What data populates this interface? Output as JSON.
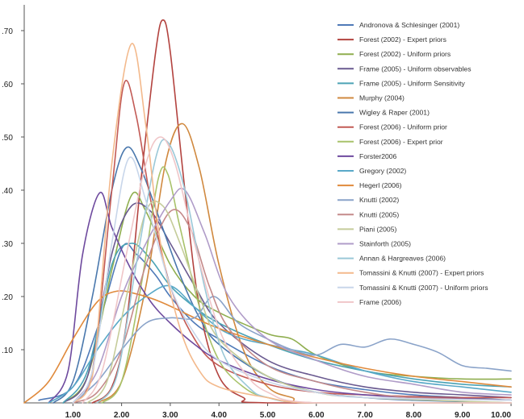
{
  "chart_data": {
    "type": "line",
    "title": "",
    "xlabel": "",
    "ylabel": "",
    "xlim": [
      0,
      10
    ],
    "ylim": [
      0,
      0.7
    ],
    "x_ticks": [
      "1.00",
      "2.00",
      "3.00",
      "4.00",
      "5.00",
      "6.00",
      "7.00",
      "8.00",
      "9.00",
      "10.00"
    ],
    "y_ticks": [
      ".10",
      ".20",
      ".30",
      ".40",
      ".50",
      ".60",
      ".70"
    ],
    "grid": false,
    "legend_position": "top-right",
    "series": [
      {
        "name": "Andronova & Schlesinger (2001)",
        "color": "#4f7ab8",
        "points": [
          [
            0.3,
            0.005
          ],
          [
            1.0,
            0.03
          ],
          [
            1.5,
            0.14
          ],
          [
            2.0,
            0.29
          ],
          [
            2.3,
            0.28
          ],
          [
            2.7,
            0.24
          ],
          [
            3.0,
            0.2
          ],
          [
            3.5,
            0.15
          ],
          [
            4.0,
            0.12
          ],
          [
            5.0,
            0.07
          ],
          [
            6.0,
            0.04
          ],
          [
            7.0,
            0.025
          ],
          [
            8.0,
            0.015
          ],
          [
            9.0,
            0.01
          ],
          [
            10.0,
            0.005
          ]
        ]
      },
      {
        "name": "Forest (2002) - Expert priors",
        "color": "#b3433f",
        "points": [
          [
            1.4,
            0.0
          ],
          [
            1.8,
            0.03
          ],
          [
            2.1,
            0.15
          ],
          [
            2.4,
            0.42
          ],
          [
            2.7,
            0.66
          ],
          [
            2.85,
            0.72
          ],
          [
            3.0,
            0.66
          ],
          [
            3.3,
            0.4
          ],
          [
            3.6,
            0.18
          ],
          [
            4.0,
            0.05
          ],
          [
            4.5,
            0.01
          ],
          [
            5.0,
            0.0
          ],
          [
            10.0,
            0.0
          ]
        ]
      },
      {
        "name": "Forest (2002) - Uniform priors",
        "color": "#8fae4f",
        "points": [
          [
            0.8,
            0.0
          ],
          [
            1.3,
            0.05
          ],
          [
            1.8,
            0.25
          ],
          [
            2.2,
            0.39
          ],
          [
            2.5,
            0.36
          ],
          [
            3.0,
            0.26
          ],
          [
            3.5,
            0.2
          ],
          [
            4.0,
            0.17
          ],
          [
            5.0,
            0.13
          ],
          [
            5.5,
            0.12
          ],
          [
            6.0,
            0.09
          ],
          [
            7.0,
            0.06
          ],
          [
            8.0,
            0.05
          ],
          [
            9.0,
            0.045
          ],
          [
            10.0,
            0.045
          ]
        ]
      },
      {
        "name": "Frame (2005) - Uniform observables",
        "color": "#6a5a90",
        "points": [
          [
            0.8,
            0.0
          ],
          [
            1.3,
            0.05
          ],
          [
            1.8,
            0.28
          ],
          [
            2.2,
            0.37
          ],
          [
            2.6,
            0.36
          ],
          [
            3.0,
            0.3
          ],
          [
            3.5,
            0.22
          ],
          [
            4.0,
            0.15
          ],
          [
            5.0,
            0.08
          ],
          [
            6.0,
            0.05
          ],
          [
            7.0,
            0.03
          ],
          [
            8.0,
            0.02
          ],
          [
            9.0,
            0.015
          ],
          [
            10.0,
            0.01
          ]
        ]
      },
      {
        "name": "Frame (2005) - Uniform Sensitivity",
        "color": "#4ca3b5",
        "points": [
          [
            0.8,
            0.0
          ],
          [
            1.3,
            0.06
          ],
          [
            1.8,
            0.26
          ],
          [
            2.2,
            0.3
          ],
          [
            2.6,
            0.27
          ],
          [
            3.0,
            0.22
          ],
          [
            3.5,
            0.18
          ],
          [
            4.0,
            0.15
          ],
          [
            5.0,
            0.11
          ],
          [
            6.0,
            0.08
          ],
          [
            7.0,
            0.06
          ],
          [
            8.0,
            0.045
          ],
          [
            9.0,
            0.035
          ],
          [
            10.0,
            0.03
          ]
        ]
      },
      {
        "name": "Murphy (2004)",
        "color": "#d0893f",
        "points": [
          [
            1.5,
            0.0
          ],
          [
            2.0,
            0.04
          ],
          [
            2.5,
            0.22
          ],
          [
            2.9,
            0.45
          ],
          [
            3.25,
            0.525
          ],
          [
            3.6,
            0.44
          ],
          [
            4.0,
            0.26
          ],
          [
            4.5,
            0.1
          ],
          [
            5.0,
            0.03
          ],
          [
            5.5,
            0.01
          ],
          [
            6.0,
            0.0
          ],
          [
            10.0,
            0.0
          ]
        ]
      },
      {
        "name": "Wigley & Raper (2001)",
        "color": "#4a78ad",
        "points": [
          [
            0.6,
            0.0
          ],
          [
            1.0,
            0.04
          ],
          [
            1.4,
            0.2
          ],
          [
            1.8,
            0.4
          ],
          [
            2.1,
            0.48
          ],
          [
            2.4,
            0.44
          ],
          [
            2.8,
            0.34
          ],
          [
            3.2,
            0.24
          ],
          [
            3.6,
            0.16
          ],
          [
            4.0,
            0.11
          ],
          [
            5.0,
            0.05
          ],
          [
            6.0,
            0.02
          ],
          [
            7.0,
            0.01
          ],
          [
            8.0,
            0.005
          ],
          [
            10.0,
            0.0
          ]
        ]
      },
      {
        "name": "Forest (2006) - Uniform prior",
        "color": "#c25a55",
        "points": [
          [
            1.0,
            0.0
          ],
          [
            1.4,
            0.06
          ],
          [
            1.8,
            0.4
          ],
          [
            2.05,
            0.6
          ],
          [
            2.3,
            0.54
          ],
          [
            2.6,
            0.38
          ],
          [
            3.0,
            0.22
          ],
          [
            3.5,
            0.12
          ],
          [
            4.0,
            0.07
          ],
          [
            5.0,
            0.035
          ],
          [
            6.0,
            0.02
          ],
          [
            7.0,
            0.015
          ],
          [
            8.0,
            0.012
          ],
          [
            9.0,
            0.01
          ],
          [
            10.0,
            0.01
          ]
        ]
      },
      {
        "name": "Forest (2006) - Expert prior",
        "color": "#a8c26a",
        "points": [
          [
            1.6,
            0.0
          ],
          [
            2.0,
            0.04
          ],
          [
            2.4,
            0.22
          ],
          [
            2.75,
            0.42
          ],
          [
            2.95,
            0.43
          ],
          [
            3.2,
            0.33
          ],
          [
            3.6,
            0.18
          ],
          [
            4.0,
            0.08
          ],
          [
            4.5,
            0.03
          ],
          [
            5.0,
            0.01
          ],
          [
            6.0,
            0.0
          ],
          [
            10.0,
            0.0
          ]
        ]
      },
      {
        "name": "Forster2006",
        "color": "#6e4a9e",
        "points": [
          [
            0.5,
            0.0
          ],
          [
            0.9,
            0.06
          ],
          [
            1.2,
            0.28
          ],
          [
            1.55,
            0.395
          ],
          [
            1.8,
            0.33
          ],
          [
            2.2,
            0.25
          ],
          [
            2.6,
            0.19
          ],
          [
            3.0,
            0.15
          ],
          [
            3.5,
            0.11
          ],
          [
            4.0,
            0.08
          ],
          [
            5.0,
            0.045
          ],
          [
            6.0,
            0.025
          ],
          [
            7.0,
            0.015
          ],
          [
            8.0,
            0.01
          ],
          [
            9.0,
            0.008
          ],
          [
            10.0,
            0.005
          ]
        ]
      },
      {
        "name": "Gregory (2002)",
        "color": "#59a9c8",
        "points": [
          [
            0.5,
            0.0
          ],
          [
            1.0,
            0.03
          ],
          [
            1.5,
            0.1
          ],
          [
            2.0,
            0.16
          ],
          [
            2.5,
            0.2
          ],
          [
            3.0,
            0.22
          ],
          [
            3.5,
            0.18
          ],
          [
            4.0,
            0.14
          ],
          [
            4.5,
            0.12
          ],
          [
            5.0,
            0.11
          ],
          [
            5.5,
            0.1
          ],
          [
            6.0,
            0.09
          ],
          [
            7.0,
            0.06
          ],
          [
            8.0,
            0.04
          ],
          [
            9.0,
            0.03
          ],
          [
            10.0,
            0.02
          ]
        ]
      },
      {
        "name": "Hegerl (2006)",
        "color": "#e08a3c",
        "points": [
          [
            0.0,
            0.0
          ],
          [
            0.5,
            0.04
          ],
          [
            1.0,
            0.12
          ],
          [
            1.5,
            0.19
          ],
          [
            1.9,
            0.21
          ],
          [
            2.3,
            0.205
          ],
          [
            2.8,
            0.19
          ],
          [
            3.5,
            0.16
          ],
          [
            4.0,
            0.14
          ],
          [
            5.0,
            0.11
          ],
          [
            6.0,
            0.085
          ],
          [
            7.0,
            0.065
          ],
          [
            8.0,
            0.05
          ],
          [
            9.0,
            0.04
          ],
          [
            10.0,
            0.03
          ]
        ]
      },
      {
        "name": "Knutti (2002)",
        "color": "#8aa3c9",
        "points": [
          [
            1.0,
            0.0
          ],
          [
            1.5,
            0.04
          ],
          [
            2.0,
            0.1
          ],
          [
            2.5,
            0.15
          ],
          [
            3.0,
            0.16
          ],
          [
            3.5,
            0.16
          ],
          [
            3.9,
            0.2
          ],
          [
            4.4,
            0.15
          ],
          [
            5.0,
            0.12
          ],
          [
            5.5,
            0.1
          ],
          [
            6.0,
            0.09
          ],
          [
            6.5,
            0.11
          ],
          [
            7.0,
            0.105
          ],
          [
            7.5,
            0.12
          ],
          [
            8.0,
            0.11
          ],
          [
            8.5,
            0.095
          ],
          [
            9.0,
            0.07
          ],
          [
            9.5,
            0.065
          ],
          [
            10.0,
            0.06
          ]
        ]
      },
      {
        "name": "Knutti (2005)",
        "color": "#c48a8a",
        "points": [
          [
            1.0,
            0.0
          ],
          [
            1.5,
            0.02
          ],
          [
            2.0,
            0.1
          ],
          [
            2.5,
            0.26
          ],
          [
            3.0,
            0.36
          ],
          [
            3.4,
            0.33
          ],
          [
            3.8,
            0.22
          ],
          [
            4.2,
            0.14
          ],
          [
            5.0,
            0.07
          ],
          [
            6.0,
            0.04
          ],
          [
            7.0,
            0.02
          ],
          [
            8.0,
            0.01
          ],
          [
            10.0,
            0.005
          ]
        ]
      },
      {
        "name": "Piani (2005)",
        "color": "#c5cc9a",
        "points": [
          [
            1.3,
            0.0
          ],
          [
            1.7,
            0.04
          ],
          [
            2.1,
            0.2
          ],
          [
            2.5,
            0.36
          ],
          [
            2.85,
            0.37
          ],
          [
            3.2,
            0.3
          ],
          [
            3.6,
            0.2
          ],
          [
            4.0,
            0.12
          ],
          [
            5.0,
            0.05
          ],
          [
            6.0,
            0.02
          ],
          [
            7.0,
            0.01
          ],
          [
            10.0,
            0.0
          ]
        ]
      },
      {
        "name": "Stainforth (2005)",
        "color": "#b09cc8",
        "points": [
          [
            1.0,
            0.0
          ],
          [
            1.5,
            0.06
          ],
          [
            2.0,
            0.2
          ],
          [
            2.5,
            0.3
          ],
          [
            3.0,
            0.38
          ],
          [
            3.3,
            0.4
          ],
          [
            3.7,
            0.32
          ],
          [
            4.2,
            0.2
          ],
          [
            5.0,
            0.12
          ],
          [
            6.0,
            0.08
          ],
          [
            7.0,
            0.05
          ],
          [
            8.0,
            0.035
          ],
          [
            9.0,
            0.02
          ],
          [
            10.0,
            0.015
          ]
        ]
      },
      {
        "name": "Annan & Hargreaves (2006)",
        "color": "#9ac8d8",
        "points": [
          [
            1.5,
            0.0
          ],
          [
            1.9,
            0.05
          ],
          [
            2.3,
            0.26
          ],
          [
            2.7,
            0.46
          ],
          [
            2.95,
            0.49
          ],
          [
            3.3,
            0.4
          ],
          [
            3.7,
            0.22
          ],
          [
            4.1,
            0.09
          ],
          [
            4.6,
            0.03
          ],
          [
            5.0,
            0.01
          ],
          [
            6.0,
            0.0
          ],
          [
            10.0,
            0.0
          ]
        ]
      },
      {
        "name": "Tomassini & Knutti (2007) - Expert priors",
        "color": "#f3b98c",
        "points": [
          [
            1.0,
            0.0
          ],
          [
            1.4,
            0.05
          ],
          [
            1.8,
            0.45
          ],
          [
            2.2,
            0.675
          ],
          [
            2.5,
            0.52
          ],
          [
            2.8,
            0.3
          ],
          [
            3.2,
            0.14
          ],
          [
            3.6,
            0.06
          ],
          [
            4.0,
            0.03
          ],
          [
            5.0,
            0.01
          ],
          [
            6.0,
            0.0
          ],
          [
            10.0,
            0.0
          ]
        ]
      },
      {
        "name": "Tomassini & Knutti (2007) - Uniform priors",
        "color": "#c8d6ea",
        "points": [
          [
            1.0,
            0.0
          ],
          [
            1.4,
            0.06
          ],
          [
            1.8,
            0.3
          ],
          [
            2.15,
            0.46
          ],
          [
            2.5,
            0.38
          ],
          [
            3.0,
            0.22
          ],
          [
            3.5,
            0.13
          ],
          [
            4.0,
            0.08
          ],
          [
            5.0,
            0.04
          ],
          [
            6.0,
            0.02
          ],
          [
            7.0,
            0.01
          ],
          [
            10.0,
            0.005
          ]
        ]
      },
      {
        "name": "Frame (2006)",
        "color": "#f0c6c8",
        "points": [
          [
            1.2,
            0.0
          ],
          [
            1.6,
            0.06
          ],
          [
            2.1,
            0.28
          ],
          [
            2.5,
            0.45
          ],
          [
            2.8,
            0.5
          ],
          [
            3.1,
            0.45
          ],
          [
            3.5,
            0.3
          ],
          [
            4.0,
            0.14
          ],
          [
            4.5,
            0.06
          ],
          [
            5.0,
            0.02
          ],
          [
            6.0,
            0.0
          ],
          [
            10.0,
            0.0
          ]
        ]
      }
    ]
  }
}
